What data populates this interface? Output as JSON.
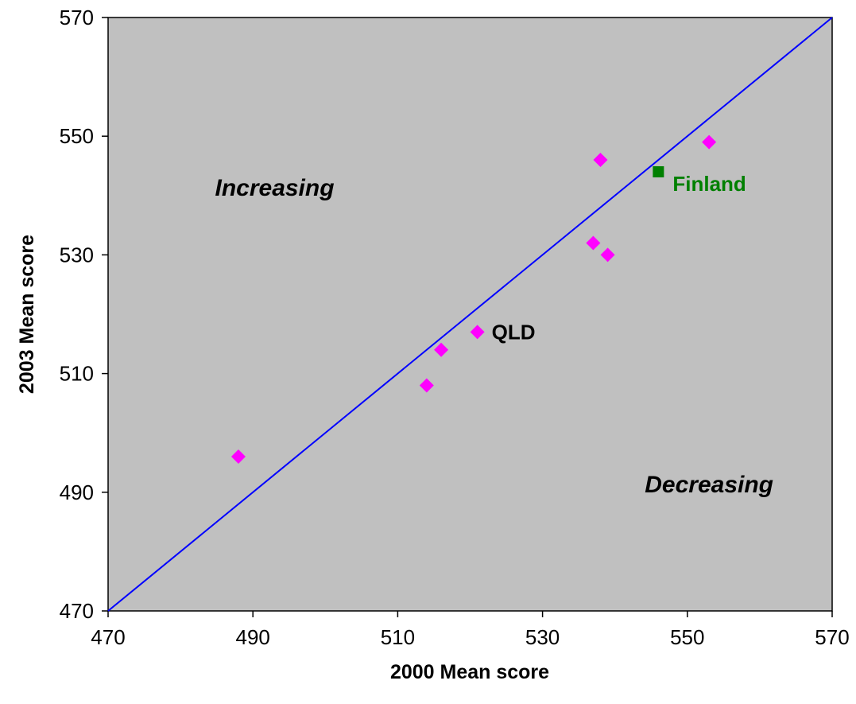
{
  "chart_data": {
    "type": "scatter",
    "xlabel": "2000 Mean score",
    "ylabel": "2003 Mean score",
    "xlim": [
      470,
      570
    ],
    "ylim": [
      470,
      570
    ],
    "x_ticks": [
      470,
      490,
      510,
      530,
      550,
      570
    ],
    "y_ticks": [
      470,
      490,
      510,
      530,
      550,
      570
    ],
    "grid": false,
    "background": "#c0c0c0",
    "reference_line": {
      "from": [
        470,
        470
      ],
      "to": [
        570,
        570
      ],
      "color": "#0000ff"
    },
    "annotations": [
      {
        "text": "Increasing",
        "x": 493,
        "y": 540
      },
      {
        "text": "Decreasing",
        "x": 553,
        "y": 490
      }
    ],
    "series": [
      {
        "marker": "diamond",
        "color": "#ff00ff",
        "points": [
          {
            "x": 488,
            "y": 496,
            "label": ""
          },
          {
            "x": 514,
            "y": 508,
            "label": ""
          },
          {
            "x": 516,
            "y": 514,
            "label": ""
          },
          {
            "x": 521,
            "y": 517,
            "label": "QLD"
          },
          {
            "x": 537,
            "y": 532,
            "label": ""
          },
          {
            "x": 538,
            "y": 546,
            "label": ""
          },
          {
            "x": 539,
            "y": 530,
            "label": ""
          },
          {
            "x": 553,
            "y": 549,
            "label": ""
          }
        ]
      },
      {
        "marker": "square",
        "color": "#008000",
        "points": [
          {
            "x": 546,
            "y": 544,
            "label": "Finland"
          }
        ]
      }
    ]
  }
}
